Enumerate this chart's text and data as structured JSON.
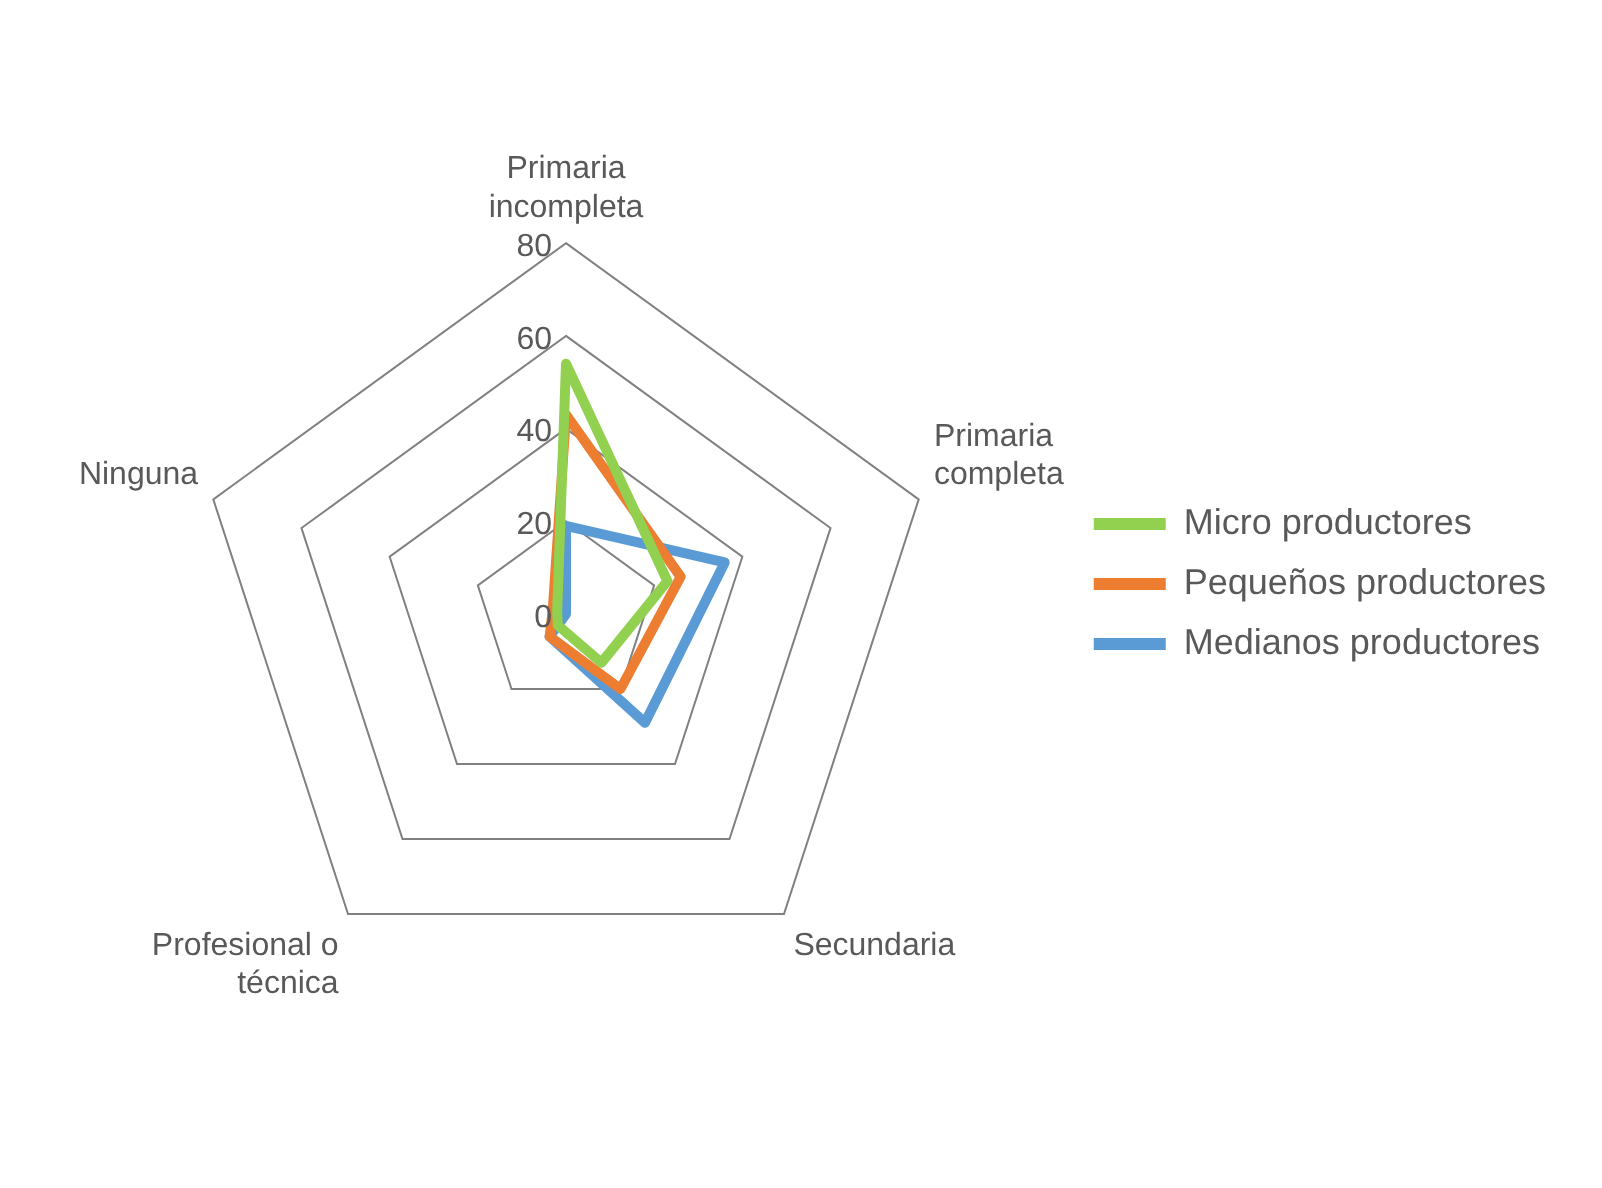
{
  "chart_data": {
    "type": "radar",
    "categories": [
      "Primaria incompleta",
      "Primaria completa",
      "Secundaria",
      "Profesional o técnica",
      "Ninguna"
    ],
    "series": [
      {
        "name": "Micro productores",
        "color": "#92d050",
        "values": [
          54,
          23,
          13,
          3,
          2
        ]
      },
      {
        "name": "Pequeños productores",
        "color": "#ed7d31",
        "values": [
          43,
          26,
          20,
          6,
          3
        ]
      },
      {
        "name": "Medianos productores",
        "color": "#5b9bd5",
        "values": [
          19,
          36,
          29,
          6,
          0
        ]
      }
    ],
    "ylim": [
      0,
      80
    ],
    "yticks": [
      0,
      20,
      40,
      60,
      80
    ],
    "grid": true,
    "legend": "right",
    "marker": "none"
  }
}
